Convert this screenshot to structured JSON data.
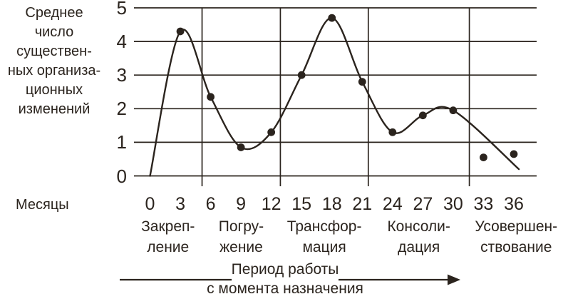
{
  "colors": {
    "ink": "#2b241e",
    "background": "#ffffff"
  },
  "y_axis_title_lines": [
    "Среднее",
    "число",
    "существен-",
    "ных организа-",
    "ционных",
    "изменений"
  ],
  "x_axis_title": "Месяцы",
  "footer": {
    "line1": "Период работы",
    "line2": "с момента назначения"
  },
  "chart_data": {
    "type": "line",
    "title": "",
    "xlabel": "Месяцы (период работы с момента назначения)",
    "ylabel": "Среднее число существенных организационных изменений",
    "ylim": [
      0,
      5
    ],
    "yticks": [
      0,
      1,
      2,
      3,
      4,
      5
    ],
    "xticks": [
      0,
      3,
      6,
      9,
      12,
      15,
      18,
      21,
      24,
      27,
      30,
      33,
      36
    ],
    "grid": "horizontal-full, vertical-phase-boundaries",
    "legend": "none",
    "series": [
      {
        "name": "Среднее число существенных организационных изменений",
        "x": [
          0,
          3,
          6,
          9,
          12,
          15,
          18,
          21,
          24,
          27,
          30
        ],
        "values": [
          0,
          4.3,
          2.35,
          0.85,
          1.3,
          3.0,
          4.7,
          2.8,
          1.3,
          1.8,
          1.95
        ],
        "marker": "filled-circle",
        "marker_from_index": 1
      }
    ],
    "detached_points": [
      {
        "x": 33,
        "value": 0.55
      },
      {
        "x": 36,
        "value": 0.65
      }
    ],
    "curve_tail_end": {
      "x": 36.5,
      "value": 0.2
    },
    "phase_boundaries_x": [
      5.15,
      12.9,
      21.6,
      31.6
    ],
    "phases": [
      {
        "line1": "Закреп-",
        "line2": "ление"
      },
      {
        "line1": "Погру-",
        "line2": "жение"
      },
      {
        "line1": "Трансфор-",
        "line2": "мация"
      },
      {
        "line1": "Консоли-",
        "line2": "дация"
      },
      {
        "line1": "Усовершен-",
        "line2": "ствование"
      }
    ]
  }
}
